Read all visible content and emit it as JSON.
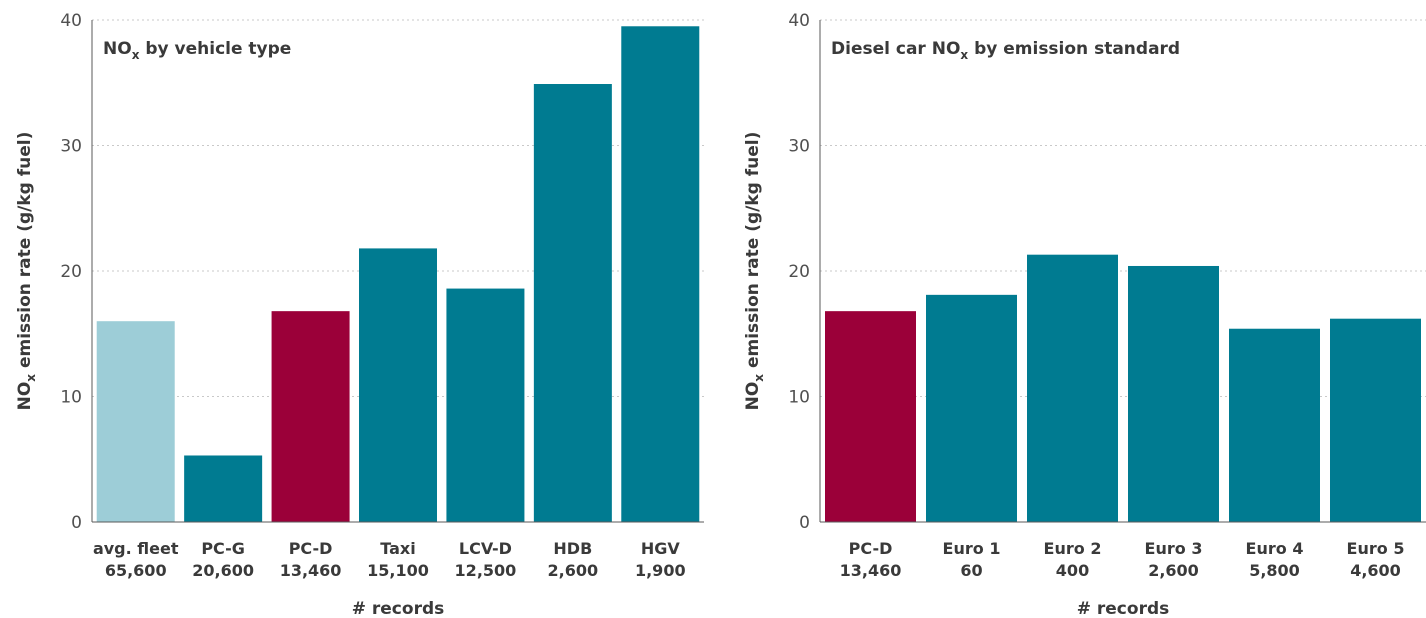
{
  "colors": {
    "fleet": "#9dcdd7",
    "diesel_car": "#9b0039",
    "other": "#007b91"
  },
  "chart_data": [
    {
      "type": "bar",
      "title_parts": [
        "NO",
        "x",
        " by vehicle type"
      ],
      "ylabel_parts": [
        "NO",
        "x",
        " emission rate (g/kg fuel)"
      ],
      "xlabel": "# records",
      "ylim": [
        0,
        40
      ],
      "yticks": [
        "0",
        "10",
        "20",
        "30",
        "40"
      ],
      "grid": true,
      "categories": [
        "avg. fleet",
        "PC-G",
        "PC-D",
        "Taxi",
        "LCV-D",
        "HDB",
        "HGV"
      ],
      "records": [
        "65,600",
        "20,600",
        "13,460",
        "15,100",
        "12,500",
        "2,600",
        "1,900"
      ],
      "values": [
        16.0,
        5.3,
        16.8,
        21.8,
        18.6,
        34.9,
        39.5
      ],
      "bar_colors": [
        "fleet",
        "other",
        "diesel_car",
        "other",
        "other",
        "other",
        "other"
      ]
    },
    {
      "type": "bar",
      "title_parts": [
        "Diesel car NO",
        "x",
        " by emission standard"
      ],
      "ylabel_parts": [
        "NO",
        "x",
        " emission rate (g/kg fuel)"
      ],
      "xlabel": "# records",
      "ylim": [
        0,
        40
      ],
      "yticks": [
        "0",
        "10",
        "20",
        "30",
        "40"
      ],
      "grid": true,
      "categories": [
        "PC-D",
        "Euro 1",
        "Euro 2",
        "Euro 3",
        "Euro 4",
        "Euro 5"
      ],
      "records": [
        "13,460",
        "60",
        "400",
        "2,600",
        "5,800",
        "4,600"
      ],
      "values": [
        16.8,
        18.1,
        21.3,
        20.4,
        15.4,
        16.2
      ],
      "bar_colors": [
        "diesel_car",
        "other",
        "other",
        "other",
        "other",
        "other"
      ]
    }
  ]
}
